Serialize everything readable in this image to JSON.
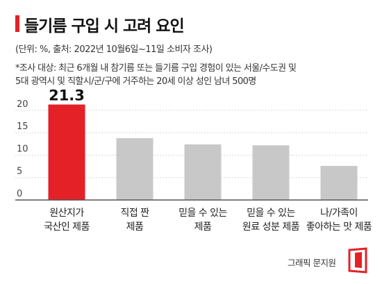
{
  "title": "들기름 구입 시 고려 요인",
  "subtitle": "(단위: %, 출처: 2022년 10월6일~11일 소비자 조사)",
  "note_lines": [
    "*조사 대상: 최근 6개월 내 참기름 또는 들기름 구입 경험이 있는 서울/수도권 및",
    "5대 광역시 및 직할시/군/구에 거주하는 20세 이상 성인 남녀 500명"
  ],
  "credit": "그래픽 문지원",
  "colors": {
    "highlight": "#e32127",
    "bar": "#c8c8c8",
    "grid": "#d9d9d9",
    "axis": "#555555"
  },
  "chart_data": {
    "type": "bar",
    "title": "들기름 구입 시 고려 요인",
    "categories": [
      [
        "원산지가",
        "국산인 제품"
      ],
      [
        "직접 짠",
        "제품"
      ],
      [
        "믿을 수 있는",
        "제품"
      ],
      [
        "믿을 수 있는",
        "원료 성분 제품"
      ],
      [
        "나/가족이",
        "좋아하는 맛 제품"
      ]
    ],
    "values": [
      21.3,
      13.8,
      12.4,
      12.2,
      7.6
    ],
    "value_labels": [
      "21.3",
      "",
      "",
      "",
      ""
    ],
    "highlight_index": 0,
    "yticks": [
      0,
      5,
      10,
      15,
      20
    ],
    "ylim": [
      0,
      22
    ],
    "grid": true,
    "unit": "%"
  }
}
